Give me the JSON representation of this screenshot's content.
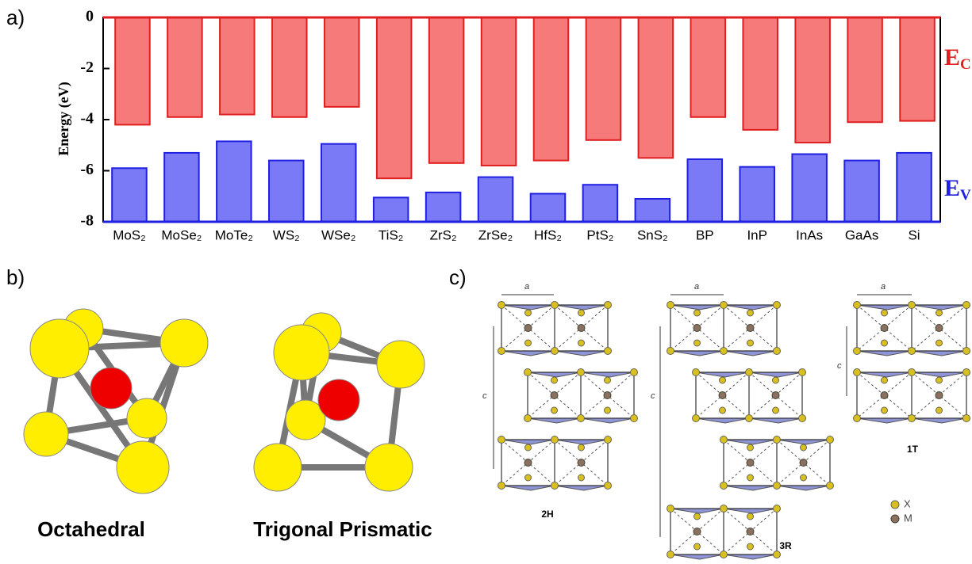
{
  "chart_data": {
    "type": "bar",
    "ylabel": "Energy (eV)",
    "categories": [
      "MoS₂",
      "MoSe₂",
      "MoTe₂",
      "WS₂",
      "WSe₂",
      "TiS₂",
      "ZrS₂",
      "ZrSe₂",
      "HfS₂",
      "PtS₂",
      "SnS₂",
      "BP",
      "InP",
      "InAs",
      "GaAs",
      "Si"
    ],
    "series": [
      {
        "name": "EC",
        "color": "#f77a7a",
        "values": [
          -4.2,
          -3.9,
          -3.8,
          -3.9,
          -3.5,
          -6.3,
          -5.7,
          -5.8,
          -5.6,
          -4.8,
          -5.5,
          -3.9,
          -4.4,
          -4.9,
          -4.1,
          -4.05
        ]
      },
      {
        "name": "EV",
        "color": "#7a7af7",
        "values": [
          -5.9,
          -5.3,
          -4.85,
          -5.6,
          -4.95,
          -7.05,
          -6.85,
          -6.25,
          -6.9,
          -6.55,
          -7.1,
          -5.55,
          -5.85,
          -5.35,
          -5.6,
          -5.3
        ]
      }
    ],
    "ylim": [
      -8,
      0
    ],
    "yticks": [
      0,
      -2,
      -4,
      -6,
      -8
    ]
  },
  "panel_labels": [
    "a)",
    "b)",
    "c)"
  ],
  "panel_b": {
    "labels": [
      "Octahedral",
      "Trigonal Prismatic"
    ]
  },
  "panel_c": {
    "lattice_a": "a",
    "lattice_c": "c",
    "polytypes": [
      "2H",
      "3R",
      "1T"
    ],
    "legend": [
      "X",
      "M"
    ]
  }
}
